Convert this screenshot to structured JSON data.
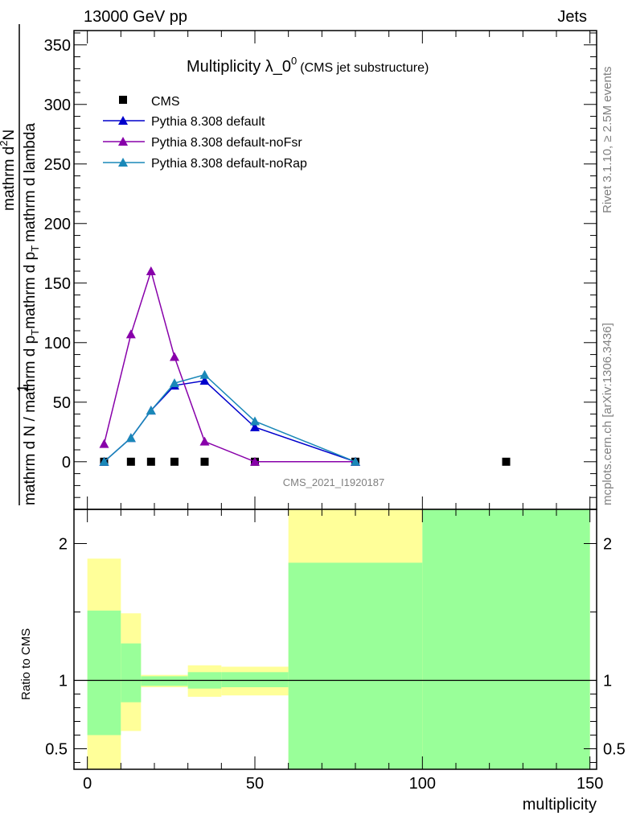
{
  "header": {
    "left": "13000 GeV pp",
    "right": "Jets",
    "side_top": "Rivet 3.1.10, ≥ 2.5M events",
    "side_bottom": "mcplots.cern.ch [arXiv:1306.3436]",
    "watermark": "CMS_2021_I1920187"
  },
  "chart_data": [
    {
      "type": "line",
      "title_main": "Multiplicity λ_0",
      "title_sup": "0",
      "title_sub": "(CMS jet substructure)",
      "ylabel_top": "1",
      "ylabel_main": "mathrm d N / mathrm d p",
      "ylabel_main_sub": "T",
      "ylabel_main_tail": "mathrm d p",
      "ylabel_main_tail_sub": "T",
      "ylabel_main_end": "mathrm d lambda",
      "ylabel_num": "mathrm d",
      "ylabel_num_sup": "2",
      "ylabel_num_end": "N",
      "xlim": [
        -4,
        152
      ],
      "ylim": [
        -40,
        362
      ],
      "yticks": [
        0,
        50,
        100,
        150,
        200,
        250,
        300,
        350
      ],
      "ytick_labels": [
        "0",
        "50",
        "100",
        "150",
        "200",
        "250",
        "300",
        "350"
      ],
      "legend_position": "top-left",
      "series": [
        {
          "name": "CMS",
          "style": "markers",
          "color": "#000000",
          "x": [
            5,
            13,
            19,
            26,
            35,
            50,
            80,
            125
          ],
          "y": [
            0,
            0,
            0,
            0,
            0,
            0,
            0,
            0
          ]
        },
        {
          "name": "Pythia 8.308 default",
          "style": "line-triangle",
          "color": "#0000cc",
          "x": [
            5,
            13,
            19,
            26,
            35,
            50,
            80
          ],
          "y": [
            0,
            20,
            43,
            64,
            68,
            29,
            0
          ]
        },
        {
          "name": "Pythia 8.308 default-noFsr",
          "style": "line-triangle",
          "color": "#8800aa",
          "x": [
            5,
            13,
            19,
            26,
            35,
            50,
            80
          ],
          "y": [
            15,
            107,
            160,
            88,
            17,
            0,
            0
          ]
        },
        {
          "name": "Pythia 8.308 default-noRap",
          "style": "line-triangle",
          "color": "#1a88b8",
          "x": [
            5,
            13,
            19,
            26,
            35,
            50,
            80
          ],
          "y": [
            0,
            20,
            43,
            66,
            73,
            34,
            0
          ]
        }
      ]
    },
    {
      "type": "area",
      "ylabel": "Ratio to CMS",
      "xlabel": "multiplicity",
      "xlim": [
        -4,
        152
      ],
      "ylim": [
        0.35,
        2.25
      ],
      "xticks": [
        0,
        50,
        100,
        150
      ],
      "xtick_labels": [
        "0",
        "50",
        "100",
        "150"
      ],
      "yticks": [
        0.5,
        1,
        2
      ],
      "ytick_labels": [
        "0.5",
        "1",
        "2"
      ],
      "band_colors": {
        "outer": "#ffff99",
        "inner": "#99ff99"
      },
      "bands": [
        {
          "x0": 0,
          "x1": 10,
          "outer": [
            0.35,
            1.89
          ],
          "inner": [
            0.6,
            1.51
          ]
        },
        {
          "x0": 10,
          "x1": 16,
          "outer": [
            0.63,
            1.49
          ],
          "inner": [
            0.84,
            1.27
          ]
        },
        {
          "x0": 16,
          "x1": 30,
          "outer": [
            0.95,
            1.04
          ],
          "inner": [
            0.96,
            1.03
          ]
        },
        {
          "x0": 30,
          "x1": 40,
          "outer": [
            0.88,
            1.11
          ],
          "inner": [
            0.94,
            1.06
          ]
        },
        {
          "x0": 40,
          "x1": 60,
          "outer": [
            0.89,
            1.1
          ],
          "inner": [
            0.95,
            1.06
          ]
        },
        {
          "x0": 60,
          "x1": 100,
          "outer": [
            0.35,
            2.25
          ],
          "inner": [
            0.35,
            1.86
          ]
        },
        {
          "x0": 100,
          "x1": 150,
          "outer": [
            0.35,
            2.25
          ],
          "inner": [
            0.35,
            2.25
          ]
        }
      ]
    }
  ]
}
